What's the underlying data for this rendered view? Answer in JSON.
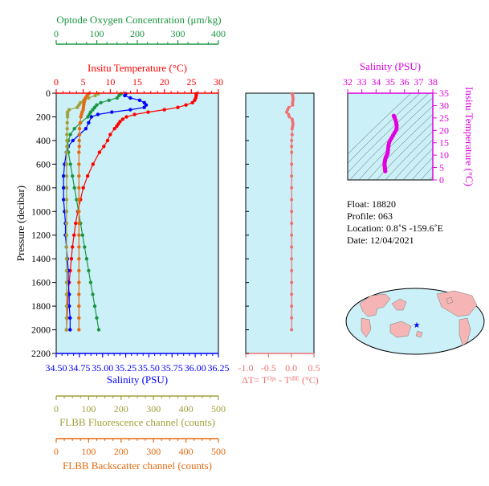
{
  "colors": {
    "salinity": "#0000ff",
    "temperature": "#ff0000",
    "oxygen": "#1a9641",
    "fluorescence": "#a1a13a",
    "backscatter": "#e66a10",
    "dt": "#f07070",
    "ts": "#e000e0",
    "panel_bg": "#ccf0f8",
    "map_land": "#f5b5b5",
    "map_ocean": "#ccf0f8"
  },
  "info": {
    "float": "Float:  18820",
    "profile": "Profile:  063",
    "location": "Location:  0.8˚S  -159.6˚E",
    "date": "Date:  12/04/2021"
  },
  "chart_data": [
    {
      "type": "line",
      "panel": "main",
      "ylabel": "Pressure (decibar)",
      "y_reversed": true,
      "ylim": [
        0,
        2200
      ],
      "yticks": [
        "0",
        "200",
        "400",
        "600",
        "800",
        "1000",
        "1200",
        "1400",
        "1600",
        "1800",
        "2000",
        "2200"
      ],
      "axes": {
        "salinity": {
          "label": "Salinity (PSU)",
          "lim": [
            34.5,
            36.25
          ],
          "ticks": [
            "34.50",
            "34.75",
            "35.00",
            "35.25",
            "35.50",
            "35.75",
            "36.00",
            "36.25"
          ]
        },
        "temperature": {
          "label": "Insitu Temperature (°C)",
          "lim": [
            0,
            30
          ],
          "ticks": [
            "0",
            "5",
            "10",
            "15",
            "20",
            "25",
            "30"
          ]
        },
        "oxygen": {
          "label": "Optode Oxygen Concentration (μm/kg)",
          "lim": [
            0,
            400
          ],
          "ticks": [
            "0",
            "100",
            "200",
            "300",
            "400"
          ]
        },
        "fluorescence": {
          "label": "FLBB Fluorescence channel (counts)",
          "lim": [
            0,
            500
          ],
          "ticks": [
            "0",
            "100",
            "200",
            "300",
            "400",
            "500"
          ]
        },
        "backscatter": {
          "label": "FLBB Backscatter channel (counts)",
          "lim": [
            0,
            500
          ],
          "ticks": [
            "0",
            "100",
            "200",
            "300",
            "400",
            "500"
          ]
        }
      },
      "series": [
        {
          "key": "temperature",
          "p": [
            5,
            20,
            40,
            60,
            80,
            100,
            120,
            140,
            160,
            180,
            200,
            220,
            240,
            260,
            280,
            300,
            350,
            400,
            450,
            500,
            600,
            700,
            800,
            900,
            1000,
            1100,
            1200,
            1300,
            1400,
            1500,
            1600,
            1700,
            1800,
            1900,
            2000
          ],
          "v": [
            25.9,
            25.9,
            25.8,
            25.6,
            25.2,
            24.0,
            22.5,
            20.0,
            17.0,
            14.5,
            13.0,
            12.3,
            11.8,
            11.5,
            11.2,
            10.8,
            10.0,
            9.5,
            8.8,
            8.0,
            6.8,
            5.8,
            5.0,
            4.5,
            4.0,
            3.6,
            3.3,
            3.0,
            2.8,
            2.6,
            2.4,
            2.2,
            2.1,
            2.0,
            1.9
          ]
        },
        {
          "key": "salinity",
          "p": [
            5,
            20,
            40,
            60,
            80,
            100,
            120,
            140,
            160,
            180,
            200,
            250,
            300,
            350,
            400,
            450,
            500,
            600,
            700,
            800,
            900,
            1000,
            1100,
            1200,
            1300,
            1400,
            1500,
            1600,
            1700,
            1800,
            1900,
            2000
          ],
          "v": [
            35.25,
            35.24,
            35.3,
            35.4,
            35.45,
            35.47,
            35.45,
            35.3,
            35.1,
            34.95,
            34.88,
            34.85,
            34.82,
            34.75,
            34.68,
            34.63,
            34.61,
            34.59,
            34.58,
            34.58,
            34.58,
            34.59,
            34.6,
            34.6,
            34.61,
            34.62,
            34.63,
            34.63,
            34.64,
            34.64,
            34.65,
            34.65
          ]
        },
        {
          "key": "oxygen",
          "p": [
            5,
            20,
            40,
            60,
            80,
            100,
            120,
            140,
            160,
            180,
            200,
            250,
            300,
            350,
            400,
            450,
            500,
            600,
            700,
            800,
            900,
            1000,
            1100,
            1200,
            1300,
            1400,
            1500,
            1600,
            1700,
            1800,
            1900,
            2000
          ],
          "v": [
            160,
            155,
            150,
            130,
            110,
            100,
            95,
            90,
            85,
            82,
            78,
            60,
            45,
            35,
            30,
            28,
            30,
            35,
            40,
            45,
            50,
            55,
            60,
            65,
            70,
            75,
            80,
            85,
            90,
            95,
            100,
            105
          ]
        },
        {
          "key": "fluorescence",
          "p": [
            5,
            20,
            40,
            60,
            80,
            100,
            120,
            140,
            160,
            180,
            200,
            250,
            300,
            350,
            400,
            450,
            500,
            600,
            700,
            800,
            900,
            1000,
            1100,
            1200,
            1300,
            1400,
            1500,
            1600,
            1700,
            1800,
            1900,
            2000
          ],
          "v": [
            130,
            120,
            100,
            85,
            75,
            70,
            65,
            40,
            35,
            35,
            35,
            34,
            34,
            33,
            33,
            33,
            32,
            32,
            32,
            32,
            32,
            32,
            32,
            32,
            32,
            32,
            32,
            32,
            32,
            32,
            32,
            32
          ]
        },
        {
          "key": "backscatter",
          "p": [
            5,
            20,
            40,
            60,
            80,
            100,
            120,
            140,
            160,
            180,
            200,
            250,
            300,
            350,
            400,
            450,
            500,
            600,
            700,
            800,
            900,
            1000,
            1100,
            1200,
            1300,
            1400,
            1500,
            1600,
            1700,
            1800,
            1900,
            2000
          ],
          "v": [
            100,
            95,
            90,
            88,
            86,
            85,
            84,
            83,
            80,
            78,
            76,
            74,
            72,
            72,
            71,
            71,
            70,
            70,
            70,
            70,
            70,
            70,
            70,
            70,
            70,
            70,
            70,
            70,
            70,
            70,
            70,
            70
          ]
        }
      ]
    },
    {
      "type": "scatter",
      "panel": "delta-t",
      "xlabel": "ΔT= Tᴼᵖᵗ - Tˢᴮᴱ (°C)",
      "xlim": [
        -1.0,
        0.5
      ],
      "xticks": [
        "-1.0",
        "-0.5",
        "0.0",
        "0.5"
      ],
      "ylim": [
        0,
        2200
      ],
      "p": [
        5,
        20,
        40,
        60,
        80,
        100,
        120,
        140,
        160,
        180,
        200,
        220,
        240,
        260,
        280,
        300,
        350,
        400,
        450,
        500,
        600,
        700,
        800,
        900,
        1000,
        1100,
        1200,
        1300,
        1400,
        1500,
        1600,
        1700,
        1800,
        1900,
        2000
      ],
      "x": [
        0.02,
        0.03,
        0.04,
        0.04,
        0.03,
        0.03,
        -0.05,
        -0.08,
        -0.1,
        -0.06,
        -0.04,
        0.02,
        0.03,
        0.04,
        0.03,
        0.02,
        0.02,
        0.01,
        0.01,
        0.01,
        0.01,
        0.01,
        0.01,
        0.01,
        0.01,
        0.01,
        0.01,
        0.01,
        0.01,
        0.01,
        0.01,
        0.01,
        0.01,
        0.01,
        0.01
      ]
    },
    {
      "type": "scatter",
      "panel": "t-s",
      "xlabel": "Salinity (PSU)",
      "ylabel": "Insitu Temperature (°C)",
      "xlim": [
        32,
        38
      ],
      "ylim": [
        0,
        35
      ],
      "xticks": [
        "32",
        "33",
        "34",
        "35",
        "36",
        "37",
        "38"
      ],
      "yticks": [
        "0",
        "5",
        "10",
        "15",
        "20",
        "25",
        "30",
        "35"
      ],
      "x": [
        35.25,
        35.28,
        35.32,
        35.38,
        35.42,
        35.45,
        35.45,
        35.4,
        35.3,
        35.2,
        35.1,
        35.0,
        34.92,
        34.88,
        34.86,
        34.84,
        34.82,
        34.8,
        34.76,
        34.72,
        34.68,
        34.66,
        34.64,
        34.62,
        34.61,
        34.6,
        34.6,
        34.61,
        34.62,
        34.63,
        34.64,
        34.65
      ],
      "y": [
        25.9,
        25.5,
        25.0,
        24.0,
        23.0,
        22.0,
        21.0,
        20.0,
        19.0,
        18.0,
        17.0,
        16.0,
        15.0,
        14.0,
        13.0,
        12.0,
        11.0,
        10.5,
        10.0,
        9.5,
        9.0,
        8.5,
        8.0,
        7.5,
        7.0,
        6.5,
        6.0,
        5.5,
        5.0,
        4.5,
        4.0,
        3.5
      ]
    }
  ]
}
